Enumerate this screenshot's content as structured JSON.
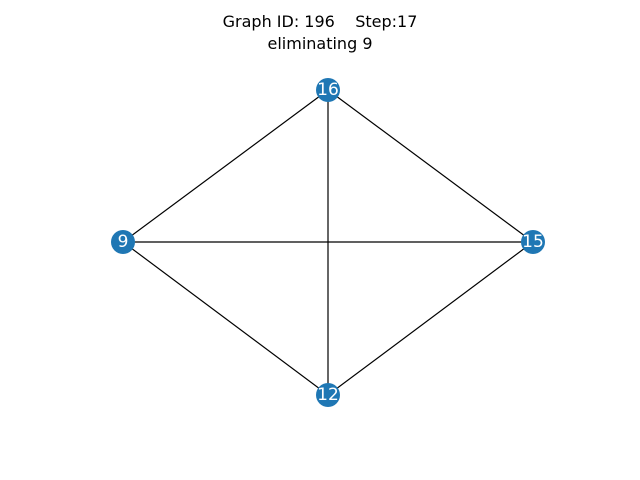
{
  "title": {
    "line1": "Graph ID: 196    Step:17",
    "line2": "eliminating 9"
  },
  "style": {
    "node_color": "#1f77b4",
    "label_color": "#ffffff",
    "edge_color": "#000000"
  },
  "graph": {
    "nodes": [
      {
        "id": "16",
        "label": "16"
      },
      {
        "id": "9",
        "label": "9"
      },
      {
        "id": "15",
        "label": "15"
      },
      {
        "id": "12",
        "label": "12"
      }
    ],
    "edges": [
      [
        "16",
        "9"
      ],
      [
        "16",
        "15"
      ],
      [
        "16",
        "12"
      ],
      [
        "9",
        "15"
      ],
      [
        "9",
        "12"
      ],
      [
        "15",
        "12"
      ]
    ]
  }
}
